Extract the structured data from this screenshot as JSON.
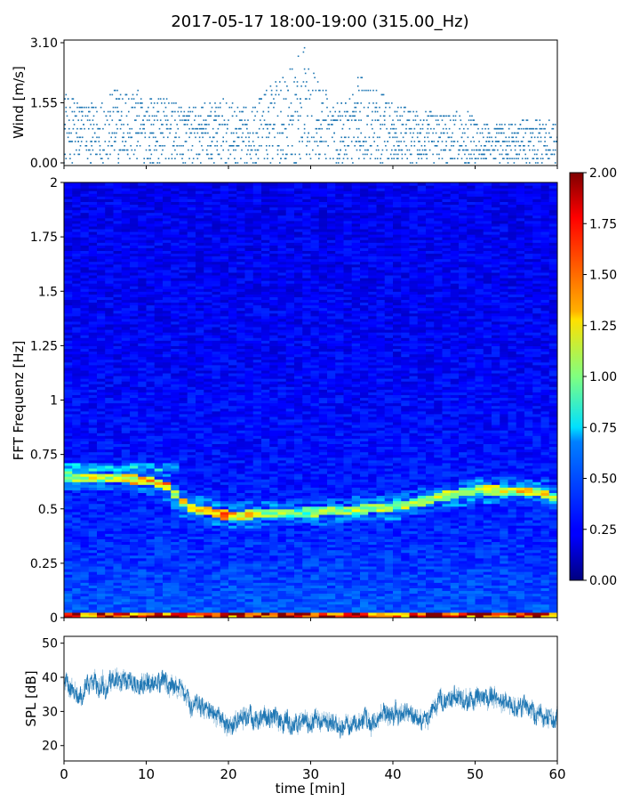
{
  "figure": {
    "title": "2017-05-17 18:00-19:00 (315.00_Hz)"
  },
  "chart_data": [
    {
      "type": "scatter",
      "name": "wind",
      "ylabel": "Wind [m/s]",
      "ylim": [
        0,
        3.1
      ],
      "yticks": [
        "0.00",
        "1.55",
        "3.10"
      ],
      "xlim": [
        0,
        60
      ],
      "marker_color": "#1f77b4",
      "envelope": [
        {
          "x": 0,
          "y": 1.8
        },
        {
          "x": 2,
          "y": 1.6
        },
        {
          "x": 4,
          "y": 1.5
        },
        {
          "x": 6,
          "y": 1.9
        },
        {
          "x": 8,
          "y": 2.0
        },
        {
          "x": 10,
          "y": 1.7
        },
        {
          "x": 12,
          "y": 1.7
        },
        {
          "x": 14,
          "y": 1.5
        },
        {
          "x": 16,
          "y": 1.4
        },
        {
          "x": 18,
          "y": 1.7
        },
        {
          "x": 20,
          "y": 1.6
        },
        {
          "x": 22,
          "y": 1.4
        },
        {
          "x": 24,
          "y": 1.7
        },
        {
          "x": 26,
          "y": 2.4
        },
        {
          "x": 28,
          "y": 2.5
        },
        {
          "x": 29,
          "y": 3.1
        },
        {
          "x": 31,
          "y": 2.1
        },
        {
          "x": 33,
          "y": 1.5
        },
        {
          "x": 35,
          "y": 1.9
        },
        {
          "x": 36,
          "y": 2.3
        },
        {
          "x": 38,
          "y": 1.9
        },
        {
          "x": 40,
          "y": 1.5
        },
        {
          "x": 42,
          "y": 1.4
        },
        {
          "x": 44,
          "y": 1.3
        },
        {
          "x": 46,
          "y": 1.3
        },
        {
          "x": 48,
          "y": 1.4
        },
        {
          "x": 50,
          "y": 1.2
        },
        {
          "x": 52,
          "y": 1.0
        },
        {
          "x": 54,
          "y": 1.0
        },
        {
          "x": 56,
          "y": 1.1
        },
        {
          "x": 58,
          "y": 1.2
        },
        {
          "x": 60,
          "y": 1.0
        }
      ]
    },
    {
      "type": "heatmap",
      "name": "spectrogram",
      "ylabel": "FFT Frequenz [Hz]",
      "xlim": [
        0,
        60
      ],
      "ylim": [
        0,
        2
      ],
      "yticks": [
        "0",
        "0.25",
        "0.5",
        "0.75",
        "1",
        "1.25",
        "1.5",
        "1.75",
        "2"
      ],
      "colorbar": {
        "min": 0.0,
        "max": 2.0,
        "ticks": [
          "0.00",
          "0.25",
          "0.50",
          "0.75",
          "1.00",
          "1.25",
          "1.50",
          "1.75",
          "2.00"
        ],
        "colormap": "jet"
      },
      "dominant_band": [
        {
          "x": 0,
          "freq": 0.65,
          "level": 0.9
        },
        {
          "x": 8,
          "freq": 0.64,
          "level": 1.2
        },
        {
          "x": 12,
          "freq": 0.62,
          "level": 1.4
        },
        {
          "x": 15,
          "freq": 0.51,
          "level": 1.1
        },
        {
          "x": 20,
          "freq": 0.47,
          "level": 1.4
        },
        {
          "x": 25,
          "freq": 0.48,
          "level": 0.9
        },
        {
          "x": 32,
          "freq": 0.49,
          "level": 0.8
        },
        {
          "x": 40,
          "freq": 0.51,
          "level": 1.0
        },
        {
          "x": 45,
          "freq": 0.55,
          "level": 0.9
        },
        {
          "x": 50,
          "freq": 0.59,
          "level": 1.0
        },
        {
          "x": 58,
          "freq": 0.58,
          "level": 1.2
        },
        {
          "x": 60,
          "freq": 0.55,
          "level": 0.9
        }
      ]
    },
    {
      "type": "line",
      "name": "spl",
      "ylabel": "SPL [dB]",
      "xlabel": "time [min]",
      "xlim": [
        0,
        60
      ],
      "ylim": [
        15.5,
        52
      ],
      "yticks": [
        "20",
        "30",
        "40",
        "50"
      ],
      "xticks": [
        "0",
        "10",
        "20",
        "30",
        "40",
        "50",
        "60"
      ],
      "line_color": "#1f77b4",
      "points": [
        {
          "x": 0,
          "y": 38
        },
        {
          "x": 2,
          "y": 35
        },
        {
          "x": 4,
          "y": 39
        },
        {
          "x": 6,
          "y": 40
        },
        {
          "x": 8,
          "y": 38
        },
        {
          "x": 10,
          "y": 39
        },
        {
          "x": 12,
          "y": 38
        },
        {
          "x": 14,
          "y": 36
        },
        {
          "x": 16,
          "y": 31
        },
        {
          "x": 18,
          "y": 29
        },
        {
          "x": 20,
          "y": 26
        },
        {
          "x": 22,
          "y": 29
        },
        {
          "x": 24,
          "y": 28
        },
        {
          "x": 26,
          "y": 27
        },
        {
          "x": 28,
          "y": 26
        },
        {
          "x": 30,
          "y": 28
        },
        {
          "x": 32,
          "y": 27
        },
        {
          "x": 34,
          "y": 26
        },
        {
          "x": 36,
          "y": 27
        },
        {
          "x": 38,
          "y": 28
        },
        {
          "x": 40,
          "y": 29
        },
        {
          "x": 42,
          "y": 30
        },
        {
          "x": 44,
          "y": 28
        },
        {
          "x": 46,
          "y": 34
        },
        {
          "x": 48,
          "y": 35
        },
        {
          "x": 50,
          "y": 33
        },
        {
          "x": 52,
          "y": 34
        },
        {
          "x": 54,
          "y": 32
        },
        {
          "x": 56,
          "y": 31
        },
        {
          "x": 58,
          "y": 29
        },
        {
          "x": 60,
          "y": 28
        }
      ]
    }
  ]
}
